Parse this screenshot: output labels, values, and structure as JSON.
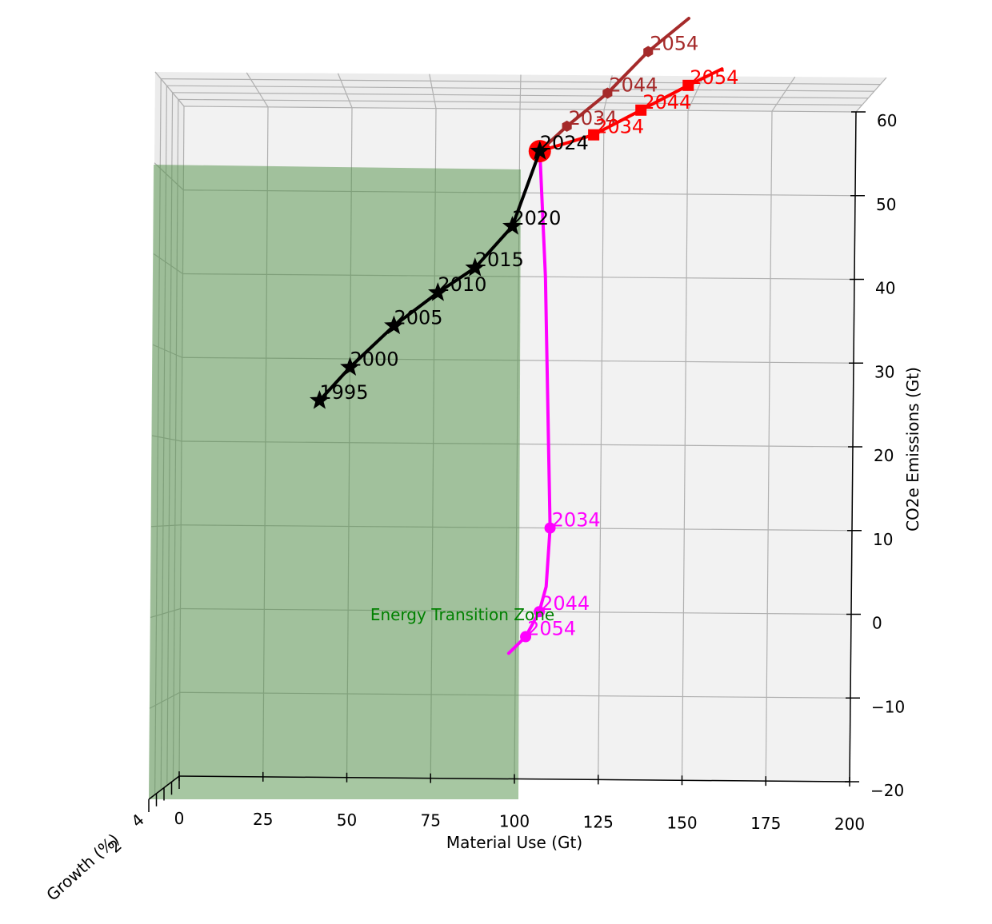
{
  "chart_data": {
    "type": "line",
    "projection": "3d",
    "title": "",
    "xlabel": "Material Use (Gt)",
    "ylabel": "Growth (%)",
    "zlabel": "CO2e Emissions (Gt)",
    "xlim": [
      0,
      200
    ],
    "zlim": [
      -20,
      60
    ],
    "x_ticks": [
      0,
      25,
      50,
      75,
      100,
      125,
      150,
      175,
      200
    ],
    "z_ticks": [
      -20,
      -10,
      0,
      10,
      20,
      30,
      40,
      50,
      60
    ],
    "y_tick_labels_visible": [
      "2",
      "4"
    ],
    "grid": true,
    "zone": {
      "label": "Energy Transition Zone",
      "x_range": [
        0,
        100
      ],
      "color": "#4f8f46"
    },
    "historical": {
      "color": "#000000",
      "marker": "star",
      "points": [
        {
          "year": "1995",
          "x": 41,
          "z": 25
        },
        {
          "year": "2000",
          "x": 50,
          "z": 29
        },
        {
          "year": "2005",
          "x": 63,
          "z": 34
        },
        {
          "year": "2010",
          "x": 76,
          "z": 38
        },
        {
          "year": "2015",
          "x": 87,
          "z": 41
        },
        {
          "year": "2020",
          "x": 98,
          "z": 46
        },
        {
          "year": "2024",
          "x": 106,
          "z": 55
        }
      ]
    },
    "start_marker": {
      "x": 106,
      "z": 55,
      "color": "#ff0000"
    },
    "scenarios": [
      {
        "color": "#a52a2a",
        "marker": "hexagon",
        "line": [
          [
            106,
            55
          ],
          [
            114,
            58
          ],
          [
            126,
            62
          ],
          [
            138,
            67
          ],
          [
            150,
            71
          ]
        ],
        "markers": [
          [
            114,
            58
          ],
          [
            126,
            62
          ],
          [
            138,
            67
          ]
        ],
        "labels": [
          {
            "text": "2034",
            "x": 114,
            "z": 58
          },
          {
            "text": "2044",
            "x": 126,
            "z": 62
          },
          {
            "text": "2054",
            "x": 138,
            "z": 67
          }
        ]
      },
      {
        "color": "#ff0000",
        "marker": "square",
        "line": [
          [
            106,
            55
          ],
          [
            122,
            57
          ],
          [
            136,
            60
          ],
          [
            150,
            63
          ],
          [
            160,
            65
          ]
        ],
        "markers": [
          [
            122,
            57
          ],
          [
            136,
            60
          ],
          [
            150,
            63
          ]
        ],
        "labels": [
          {
            "text": "2034",
            "x": 122,
            "z": 57
          },
          {
            "text": "2044",
            "x": 136,
            "z": 60
          },
          {
            "text": "2054",
            "x": 150,
            "z": 63
          }
        ]
      },
      {
        "color": "#ff00ff",
        "marker": "circle",
        "line": [
          [
            106,
            55
          ],
          [
            108,
            40
          ],
          [
            109,
            25
          ],
          [
            110,
            10
          ],
          [
            109,
            3
          ],
          [
            107,
            0
          ],
          [
            103,
            -3
          ],
          [
            98,
            -5
          ]
        ],
        "markers": [
          [
            110,
            10
          ],
          [
            107,
            0
          ],
          [
            103,
            -3
          ]
        ],
        "labels": [
          {
            "text": "2034",
            "x": 110,
            "z": 10
          },
          {
            "text": "2044",
            "x": 107,
            "z": 0
          },
          {
            "text": "2054",
            "x": 103,
            "z": -3
          }
        ]
      }
    ]
  }
}
